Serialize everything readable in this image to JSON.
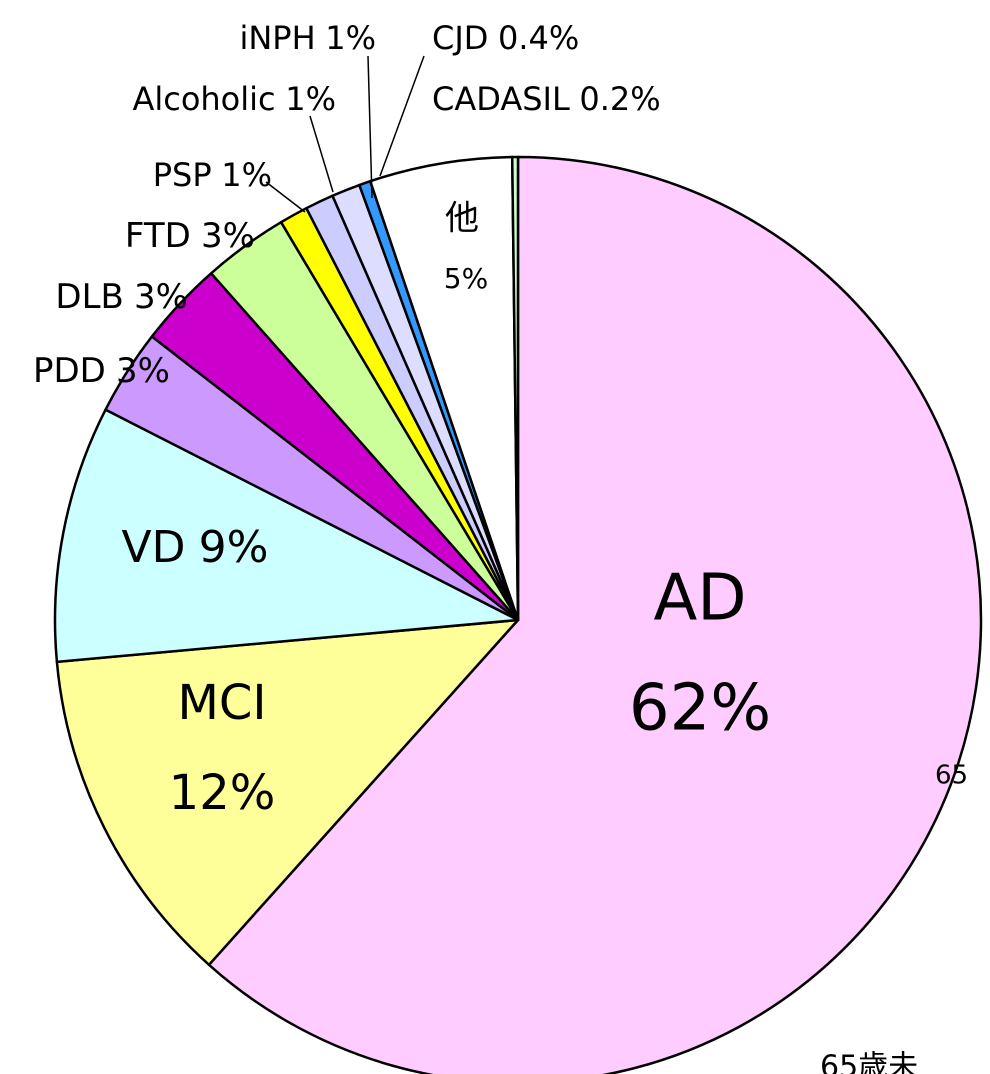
{
  "chart_data": {
    "type": "pie",
    "categories": [
      "AD",
      "MCI",
      "VD",
      "PDD",
      "DLB",
      "FTD",
      "PSP",
      "Alcoholic",
      "iNPH",
      "CJD",
      "他",
      "CADASIL"
    ],
    "values": [
      62,
      12,
      9,
      3,
      3,
      3,
      1,
      1,
      1,
      0.4,
      5,
      0.2
    ],
    "value_labels": [
      "62%",
      "12%",
      "9%",
      "3%",
      "3%",
      "3%",
      "1%",
      "1%",
      "1%",
      "0.4%",
      "5%",
      "0.2%"
    ],
    "colors": [
      "#ffccff",
      "#ffff99",
      "#ccffff",
      "#cc99ff",
      "#cc00cc",
      "#ccff99",
      "#ffff00",
      "#ccccff",
      "#ddddff",
      "#3399ff",
      "#ffffff",
      "#ccffcc"
    ],
    "annotations": [
      "65",
      "65歳未"
    ]
  }
}
